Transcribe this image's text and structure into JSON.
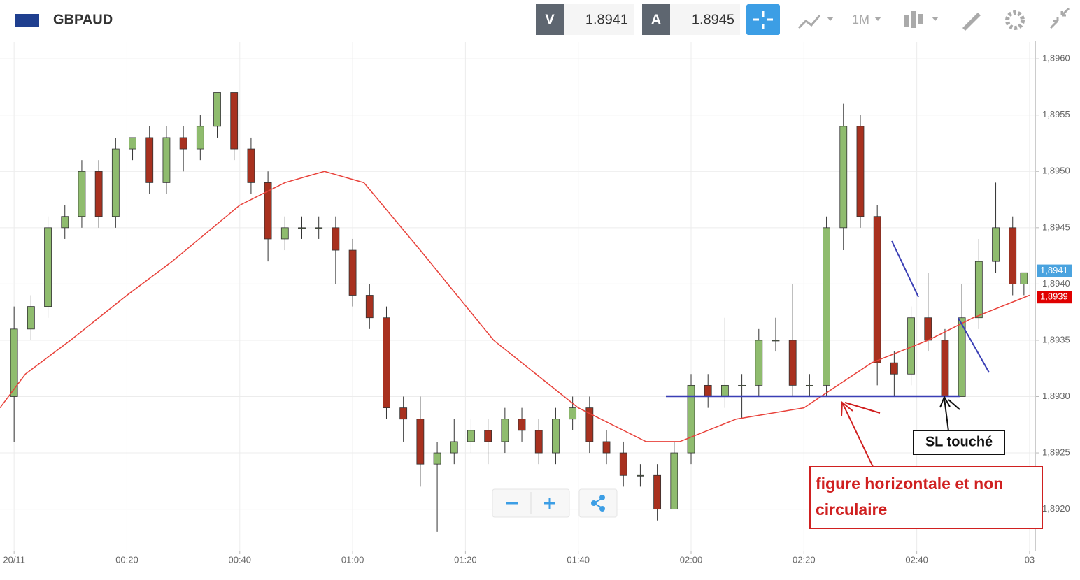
{
  "header": {
    "symbol": "GBPAUD",
    "bid_tag": "V",
    "bid": "1.8941",
    "ask_tag": "A",
    "ask": "1.8945",
    "timeframe": "1M"
  },
  "chart_data": {
    "type": "candlestick",
    "x": [
      0,
      3,
      6,
      9,
      12,
      15,
      18,
      21,
      24,
      27,
      30,
      33,
      36,
      39,
      42,
      45,
      48,
      51,
      54,
      57,
      60,
      63,
      66,
      69,
      72,
      75,
      78,
      81,
      84,
      87,
      90,
      93,
      96,
      99,
      102,
      105,
      108,
      111,
      114,
      117,
      120,
      123,
      126,
      129,
      132,
      135,
      138,
      141,
      144,
      147,
      150,
      153,
      156,
      159,
      162,
      165,
      168,
      171,
      174,
      177,
      179
    ],
    "open": [
      1.893,
      1.8936,
      1.8938,
      1.8945,
      1.8946,
      1.895,
      1.8946,
      1.8952,
      1.8953,
      1.8949,
      1.8953,
      1.8952,
      1.8954,
      1.8957,
      1.8952,
      1.8949,
      1.8944,
      1.8945,
      1.8945,
      1.8945,
      1.8943,
      1.8939,
      1.8937,
      1.8929,
      1.8928,
      1.8924,
      1.8925,
      1.8926,
      1.8927,
      1.8926,
      1.8928,
      1.8927,
      1.8925,
      1.8928,
      1.8929,
      1.8926,
      1.8925,
      1.8923,
      1.8923,
      1.892,
      1.8925,
      1.8931,
      1.893,
      1.8931,
      1.8931,
      1.8935,
      1.8935,
      1.8931,
      1.8931,
      1.8945,
      1.8954,
      1.8946,
      1.8933,
      1.8932,
      1.8937,
      1.8935,
      1.893,
      1.8937,
      1.8942,
      1.8945,
      1.894
    ],
    "high": [
      1.8938,
      1.8939,
      1.8946,
      1.8947,
      1.8951,
      1.8951,
      1.8953,
      1.8953,
      1.8954,
      1.8954,
      1.8954,
      1.8955,
      1.8957,
      1.8957,
      1.8953,
      1.895,
      1.8946,
      1.8946,
      1.8946,
      1.8946,
      1.8944,
      1.894,
      1.8938,
      1.893,
      1.893,
      1.8926,
      1.8928,
      1.8928,
      1.8928,
      1.8929,
      1.8929,
      1.8928,
      1.8929,
      1.893,
      1.893,
      1.8927,
      1.8926,
      1.8924,
      1.8924,
      1.8926,
      1.8932,
      1.8932,
      1.8937,
      1.8932,
      1.8936,
      1.8937,
      1.894,
      1.8932,
      1.8946,
      1.8956,
      1.8955,
      1.8947,
      1.8934,
      1.8938,
      1.8941,
      1.8936,
      1.894,
      1.8944,
      1.8949,
      1.8946,
      1.8941
    ],
    "low": [
      1.8926,
      1.8935,
      1.8937,
      1.8944,
      1.8945,
      1.8945,
      1.8945,
      1.8951,
      1.8948,
      1.8948,
      1.895,
      1.8951,
      1.8953,
      1.8951,
      1.8948,
      1.8942,
      1.8943,
      1.8944,
      1.8944,
      1.894,
      1.8938,
      1.8936,
      1.8928,
      1.8926,
      1.8922,
      1.8918,
      1.8924,
      1.8925,
      1.8924,
      1.8925,
      1.8926,
      1.8924,
      1.8924,
      1.8927,
      1.8925,
      1.8924,
      1.8922,
      1.8922,
      1.8919,
      1.892,
      1.8924,
      1.8929,
      1.8929,
      1.8928,
      1.893,
      1.8934,
      1.893,
      1.893,
      1.893,
      1.8943,
      1.8945,
      1.8931,
      1.893,
      1.8931,
      1.8934,
      1.893,
      1.893,
      1.8936,
      1.8941,
      1.8939,
      1.8939
    ],
    "close": [
      1.8936,
      1.8938,
      1.8945,
      1.8946,
      1.895,
      1.8946,
      1.8952,
      1.8953,
      1.8949,
      1.8953,
      1.8952,
      1.8954,
      1.8957,
      1.8952,
      1.8949,
      1.8944,
      1.8945,
      1.8945,
      1.8945,
      1.8943,
      1.8939,
      1.8937,
      1.8929,
      1.8928,
      1.8924,
      1.8925,
      1.8926,
      1.8927,
      1.8926,
      1.8928,
      1.8927,
      1.8925,
      1.8928,
      1.8929,
      1.8926,
      1.8925,
      1.8923,
      1.8923,
      1.892,
      1.8925,
      1.8931,
      1.893,
      1.8931,
      1.8931,
      1.8935,
      1.8935,
      1.8931,
      1.8931,
      1.8945,
      1.8954,
      1.8946,
      1.8933,
      1.8932,
      1.8937,
      1.8935,
      1.893,
      1.8937,
      1.8942,
      1.8945,
      1.894,
      1.8941
    ],
    "up_color": "#8fbc6e",
    "down_color": "#a8311f",
    "ma": {
      "color": "#e8413a",
      "x": [
        -2.5,
        2,
        10,
        20,
        28,
        40,
        48,
        55,
        62,
        72,
        85,
        100,
        112,
        118,
        128,
        140,
        146,
        152,
        162,
        170,
        180
      ],
      "values": [
        1.8929,
        1.8932,
        1.8935,
        1.8939,
        1.8942,
        1.8947,
        1.8949,
        1.895,
        1.8949,
        1.8943,
        1.8935,
        1.8929,
        1.8926,
        1.8926,
        1.8928,
        1.8929,
        1.8931,
        1.8933,
        1.8935,
        1.8937,
        1.8939
      ]
    },
    "last_price": {
      "value": 1.8941,
      "label": "1,8941",
      "color": "#4aa3df"
    },
    "ma_last": {
      "value": 1.8939,
      "label": "1,8939",
      "color": "#e00000"
    },
    "xlim": [
      -2.5,
      181
    ],
    "ylim": [
      1.89165,
      1.89615
    ],
    "xticks": [
      {
        "value": 0,
        "label": "20/11"
      },
      {
        "value": 20,
        "label": "00:20"
      },
      {
        "value": 40,
        "label": "00:40"
      },
      {
        "value": 60,
        "label": "01:00"
      },
      {
        "value": 80,
        "label": "01:20"
      },
      {
        "value": 100,
        "label": "01:40"
      },
      {
        "value": 120,
        "label": "02:00"
      },
      {
        "value": 140,
        "label": "02:20"
      },
      {
        "value": 160,
        "label": "02:40"
      },
      {
        "value": 180,
        "label": "03"
      }
    ],
    "yticks": [
      {
        "value": 1.892,
        "label": "1,8920"
      },
      {
        "value": 1.8925,
        "label": "1,8925"
      },
      {
        "value": 1.893,
        "label": "1,8930"
      },
      {
        "value": 1.8935,
        "label": "1,8935"
      },
      {
        "value": 1.894,
        "label": "1,8940"
      },
      {
        "value": 1.8945,
        "label": "1,8945"
      },
      {
        "value": 1.895,
        "label": "1,8950"
      },
      {
        "value": 1.8955,
        "label": "1,8955"
      },
      {
        "value": 1.896,
        "label": "1,8960"
      }
    ],
    "grid": true,
    "annotations": [
      "SL touché",
      "figure horizontale et non circulaire"
    ]
  }
}
